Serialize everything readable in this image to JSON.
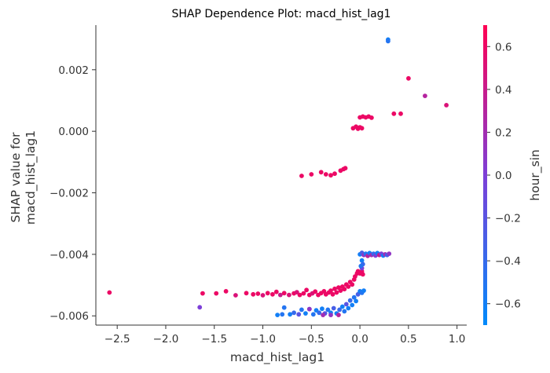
{
  "chart_data": {
    "type": "scatter",
    "title": "SHAP Dependence Plot: macd_hist_lag1",
    "xlabel": "macd_hist_lag1",
    "ylabel_lines": [
      "SHAP value for",
      "macd_hist_lag1"
    ],
    "xlim": [
      -2.72,
      1.1
    ],
    "ylim": [
      -0.0063,
      0.00345
    ],
    "xticks": [
      -2.5,
      -2.0,
      -1.5,
      -1.0,
      -0.5,
      0.0,
      0.5,
      1.0
    ],
    "xtick_labels": [
      "−2.5",
      "−2.0",
      "−1.5",
      "−1.0",
      "−0.5",
      "0.0",
      "0.5",
      "1.0"
    ],
    "yticks": [
      -0.006,
      -0.004,
      -0.002,
      0.0,
      0.002
    ],
    "ytick_labels": [
      "−0.006",
      "−0.004",
      "−0.002",
      "0.000",
      "0.002"
    ],
    "colorbar": {
      "label": "hour_sin",
      "range": [
        -0.7,
        0.7
      ],
      "ticks": [
        -0.6,
        -0.4,
        -0.2,
        0.0,
        0.2,
        0.4,
        0.6
      ],
      "tick_labels": [
        "−0.6",
        "−0.4",
        "−0.2",
        "0.0",
        "0.2",
        "0.4",
        "0.6"
      ],
      "colormap": [
        "#008afb",
        "#7d3fd8",
        "#ff0052"
      ]
    },
    "grid": false,
    "points": [
      [
        -2.58,
        -0.00524,
        0.6
      ],
      [
        -1.65,
        -0.00572,
        0.0
      ],
      [
        -1.62,
        -0.00527,
        0.6
      ],
      [
        -1.48,
        -0.00527,
        0.6
      ],
      [
        -1.38,
        -0.0052,
        0.6
      ],
      [
        -1.28,
        -0.00533,
        0.5
      ],
      [
        -1.17,
        -0.00526,
        0.6
      ],
      [
        -1.1,
        -0.0053,
        0.6
      ],
      [
        -1.05,
        -0.00528,
        0.6
      ],
      [
        -1.0,
        -0.00533,
        0.5
      ],
      [
        -0.95,
        -0.00526,
        0.6
      ],
      [
        -0.9,
        -0.0053,
        0.6
      ],
      [
        -0.86,
        -0.00522,
        0.6
      ],
      [
        -0.82,
        -0.00532,
        0.4
      ],
      [
        -0.78,
        -0.00526,
        0.6
      ],
      [
        -0.73,
        -0.00532,
        0.5
      ],
      [
        -0.68,
        -0.00527,
        0.6
      ],
      [
        -0.65,
        -0.00523,
        0.5
      ],
      [
        -0.62,
        -0.00532,
        0.6
      ],
      [
        -0.58,
        -0.00527,
        0.6
      ],
      [
        -0.55,
        -0.00516,
        0.6
      ],
      [
        -0.52,
        -0.00532,
        0.6
      ],
      [
        -0.49,
        -0.00527,
        0.5
      ],
      [
        -0.46,
        -0.00521,
        0.6
      ],
      [
        -0.43,
        -0.00532,
        0.6
      ],
      [
        -0.4,
        -0.00526,
        0.6
      ],
      [
        -0.37,
        -0.0052,
        0.6
      ],
      [
        -0.35,
        -0.0053,
        0.6
      ],
      [
        -0.32,
        -0.00524,
        0.6
      ],
      [
        -0.3,
        -0.00518,
        0.6
      ],
      [
        -0.28,
        -0.0053,
        0.6
      ],
      [
        -0.26,
        -0.00512,
        0.6
      ],
      [
        -0.24,
        -0.00524,
        0.6
      ],
      [
        -0.22,
        -0.00508,
        0.6
      ],
      [
        -0.2,
        -0.00518,
        0.6
      ],
      [
        -0.18,
        -0.00505,
        0.6
      ],
      [
        -0.16,
        -0.00513,
        0.6
      ],
      [
        -0.14,
        -0.00498,
        0.6
      ],
      [
        -0.12,
        -0.00505,
        0.6
      ],
      [
        -0.1,
        -0.0049,
        0.6
      ],
      [
        -0.08,
        -0.00498,
        0.6
      ],
      [
        -0.06,
        -0.00482,
        0.6
      ],
      [
        -0.05,
        -0.00472,
        0.6
      ],
      [
        -0.03,
        -0.00462,
        0.6
      ],
      [
        -0.02,
        -0.00455,
        0.6
      ],
      [
        0.0,
        -0.00462,
        0.6
      ],
      [
        0.02,
        -0.00455,
        0.6
      ],
      [
        0.03,
        -0.00465,
        0.6
      ],
      [
        -0.8,
        -0.00595,
        -0.5
      ],
      [
        -0.78,
        -0.00573,
        -0.5
      ],
      [
        -0.72,
        -0.00595,
        -0.6
      ],
      [
        -0.68,
        -0.0059,
        -0.4
      ],
      [
        -0.63,
        -0.00595,
        -0.2
      ],
      [
        -0.6,
        -0.0058,
        -0.5
      ],
      [
        -0.56,
        -0.00592,
        -0.6
      ],
      [
        -0.52,
        -0.00578,
        -0.3
      ],
      [
        -0.48,
        -0.00595,
        -0.5
      ],
      [
        -0.45,
        -0.00582,
        -0.6
      ],
      [
        -0.42,
        -0.0059,
        -0.4
      ],
      [
        -0.39,
        -0.00577,
        -0.6
      ],
      [
        -0.36,
        -0.00592,
        -0.2
      ],
      [
        -0.33,
        -0.0058,
        -0.5
      ],
      [
        -0.3,
        -0.0059,
        -0.6
      ],
      [
        -0.27,
        -0.00575,
        -0.3
      ],
      [
        -0.24,
        -0.00592,
        -0.6
      ],
      [
        -0.21,
        -0.0058,
        -0.4
      ],
      [
        -0.18,
        -0.0057,
        -0.6
      ],
      [
        -0.16,
        -0.00585,
        -0.5
      ],
      [
        -0.14,
        -0.00562,
        -0.2
      ],
      [
        -0.12,
        -0.00575,
        -0.6
      ],
      [
        -0.1,
        -0.0055,
        -0.4
      ],
      [
        -0.08,
        -0.00565,
        -0.6
      ],
      [
        -0.06,
        -0.0054,
        -0.5
      ],
      [
        -0.04,
        -0.00552,
        -0.6
      ],
      [
        -0.02,
        -0.0053,
        -0.3
      ],
      [
        0.0,
        -0.0052,
        -0.6
      ],
      [
        0.02,
        -0.00525,
        -0.5
      ],
      [
        0.04,
        -0.00518,
        -0.6
      ],
      [
        -0.38,
        -0.00597,
        0.2
      ],
      [
        -0.3,
        -0.00597,
        0.1
      ],
      [
        -0.22,
        -0.00597,
        0.3
      ],
      [
        -0.85,
        -0.00597,
        -0.6
      ],
      [
        -0.52,
        -0.00578,
        0.1
      ],
      [
        0.0,
        -0.004,
        -0.6
      ],
      [
        0.02,
        -0.00395,
        -0.3
      ],
      [
        0.04,
        -0.00402,
        0.1
      ],
      [
        0.06,
        -0.00398,
        -0.5
      ],
      [
        0.08,
        -0.00405,
        0.3
      ],
      [
        0.1,
        -0.00396,
        -0.6
      ],
      [
        0.12,
        -0.00402,
        0.2
      ],
      [
        0.14,
        -0.00398,
        -0.4
      ],
      [
        0.16,
        -0.00404,
        0.0
      ],
      [
        0.18,
        -0.00396,
        -0.6
      ],
      [
        0.2,
        -0.00402,
        0.4
      ],
      [
        0.22,
        -0.00398,
        0.0
      ],
      [
        0.24,
        -0.00404,
        -0.6
      ],
      [
        0.26,
        -0.004,
        0.2
      ],
      [
        0.28,
        -0.00402,
        -0.3
      ],
      [
        0.3,
        -0.00398,
        0.1
      ],
      [
        0.02,
        -0.0042,
        -0.6
      ],
      [
        0.03,
        -0.00432,
        -0.4
      ],
      [
        0.02,
        -0.00445,
        0.0
      ],
      [
        0.01,
        -0.00438,
        -0.5
      ],
      [
        -0.6,
        -0.00145,
        0.6
      ],
      [
        -0.5,
        -0.0014,
        0.6
      ],
      [
        -0.4,
        -0.00133,
        0.6
      ],
      [
        -0.35,
        -0.0014,
        0.6
      ],
      [
        -0.3,
        -0.00143,
        0.6
      ],
      [
        -0.26,
        -0.00138,
        0.6
      ],
      [
        -0.2,
        -0.00128,
        0.6
      ],
      [
        -0.17,
        -0.00123,
        0.6
      ],
      [
        -0.15,
        -0.0012,
        0.6
      ],
      [
        -0.07,
        0.0001,
        0.6
      ],
      [
        -0.04,
        0.00015,
        0.6
      ],
      [
        -0.02,
        8e-05,
        0.6
      ],
      [
        0.0,
        0.00013,
        0.6
      ],
      [
        0.02,
        0.0001,
        0.6
      ],
      [
        0.0,
        0.00045,
        0.6
      ],
      [
        0.03,
        0.00048,
        0.6
      ],
      [
        0.06,
        0.00045,
        0.6
      ],
      [
        0.09,
        0.00048,
        0.6
      ],
      [
        0.12,
        0.00044,
        0.6
      ],
      [
        0.35,
        0.00057,
        0.6
      ],
      [
        0.42,
        0.00057,
        0.6
      ],
      [
        0.29,
        0.00298,
        -0.6
      ],
      [
        0.29,
        0.00293,
        -0.5
      ],
      [
        0.5,
        0.00172,
        0.6
      ],
      [
        0.67,
        0.00115,
        0.3
      ],
      [
        0.89,
        0.00085,
        0.5
      ]
    ]
  }
}
